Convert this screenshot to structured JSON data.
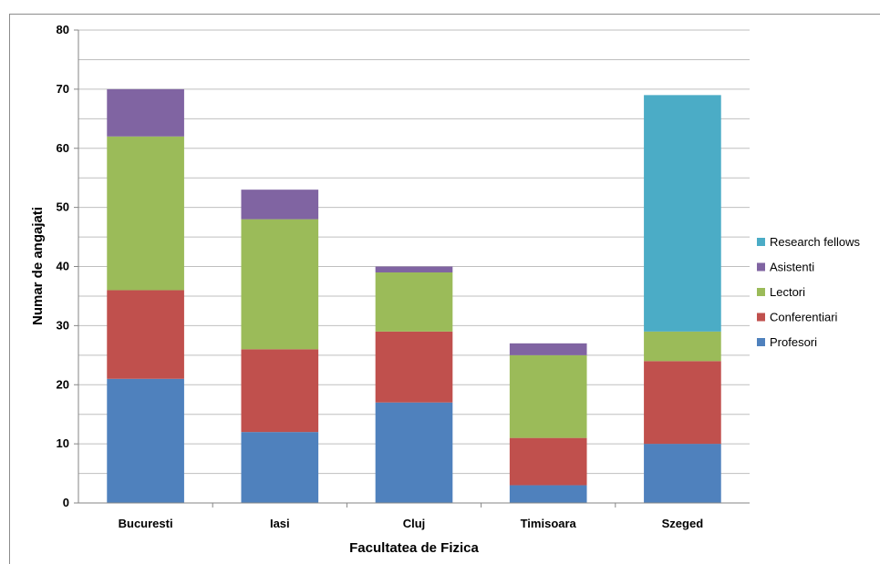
{
  "chart_data": {
    "type": "bar",
    "stacked": true,
    "title": "",
    "xlabel": "Facultatea de Fizica",
    "ylabel": "Numar  de angajati",
    "ylim": [
      0,
      80
    ],
    "yticks": [
      0,
      10,
      20,
      30,
      40,
      50,
      60,
      70,
      80
    ],
    "categories": [
      "Bucuresti",
      "Iasi",
      "Cluj",
      "Timisoara",
      "Szeged"
    ],
    "series": [
      {
        "name": "Profesori",
        "color": "#4f81bd",
        "values": [
          21,
          12,
          17,
          3,
          10
        ]
      },
      {
        "name": "Conferentiari",
        "color": "#c0504d",
        "values": [
          15,
          14,
          12,
          8,
          14
        ]
      },
      {
        "name": "Lectori",
        "color": "#9bbb59",
        "values": [
          26,
          22,
          10,
          14,
          5
        ]
      },
      {
        "name": "Asistenti",
        "color": "#8064a2",
        "values": [
          8,
          5,
          1,
          2,
          0
        ]
      },
      {
        "name": "Research fellows",
        "color": "#4bacc6",
        "values": [
          0,
          0,
          0,
          0,
          40
        ]
      }
    ],
    "legend_position": "right",
    "grid": true
  }
}
